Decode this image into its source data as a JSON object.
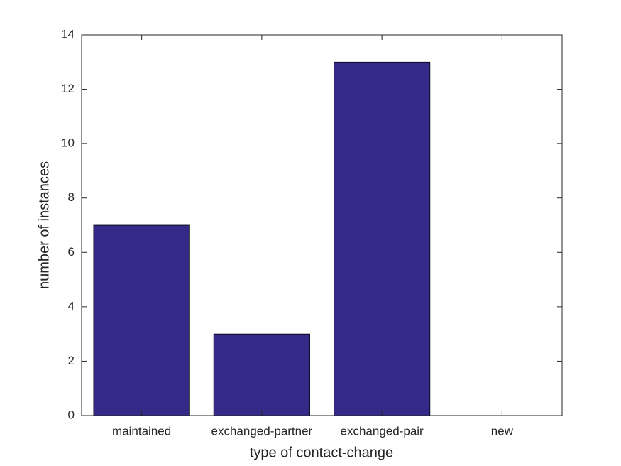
{
  "chart_data": {
    "type": "bar",
    "x_label": "type of contact-change",
    "y_label": "number of instances",
    "categories": [
      "maintained",
      "exchanged-partner",
      "exchanged-pair",
      "new"
    ],
    "values": [
      7,
      3,
      13,
      0
    ],
    "color": "#352a87",
    "ylim": [
      0,
      14
    ],
    "yticks": [
      0,
      2,
      4,
      6,
      8,
      10,
      12,
      14
    ],
    "grid": false
  }
}
